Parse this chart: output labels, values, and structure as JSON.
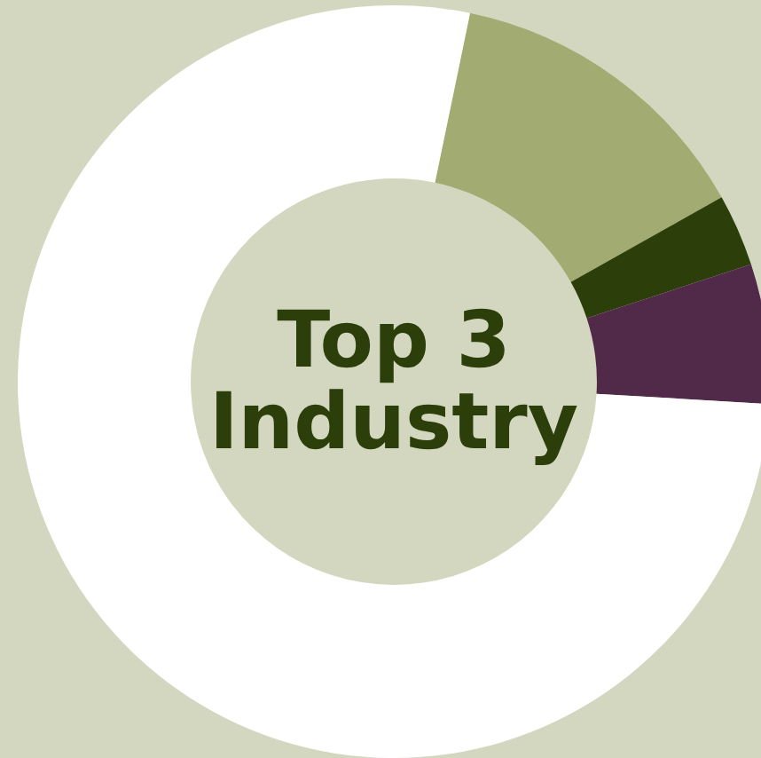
{
  "chart_data": {
    "type": "donut",
    "title": "Top 3 Industry",
    "categories": [
      null,
      null,
      null,
      null
    ],
    "values": [
      13.6,
      3.1,
      6.0,
      77.3
    ],
    "colors": [
      "#a2ab72",
      "#2c3f0b",
      "#512a4a",
      "#ffffff"
    ],
    "legend": false
  }
}
